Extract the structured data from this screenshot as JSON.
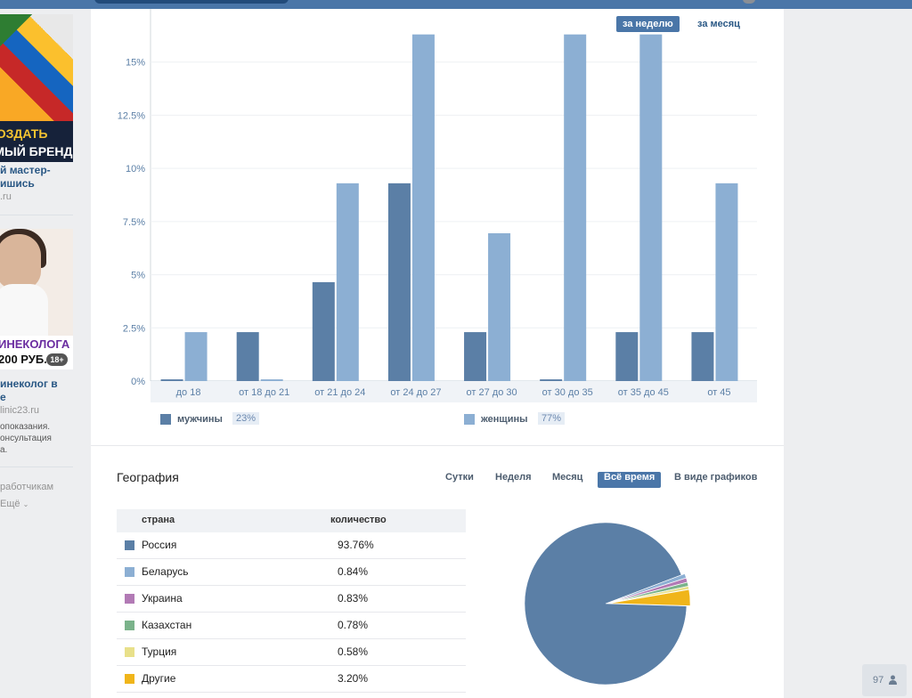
{
  "ads": [
    {
      "banner_line1": "СОЗДАТЬ",
      "banner_line2": "ЕМЫЙ БРЕНД",
      "title_line1": "й мастер-",
      "title_line2": "ишись",
      "domain": ".ru"
    },
    {
      "banner_line1": "ИНЕКОЛОГА",
      "banner_line2": "200 РУБ.",
      "age_badge": "18+",
      "title_line1": "инеколог в",
      "title_line2": "е",
      "domain": "linic23.ru",
      "desc_line1": "опоказания.",
      "desc_line2": "онсультация",
      "desc_line3": "а."
    }
  ],
  "left_links": {
    "developers": "работчикам",
    "more": "Ещё"
  },
  "period_buttons": {
    "week": "за неделю",
    "month": "за месяц"
  },
  "chart_data": {
    "type": "bar",
    "categories": [
      "до 18",
      "от 18 до 21",
      "от 21 до 24",
      "от 24 до 27",
      "от 27 до 30",
      "от 30 до 35",
      "от 35 до 45",
      "от 45"
    ],
    "series": [
      {
        "name": "мужчины",
        "values": [
          0.08,
          2.3,
          4.65,
          9.3,
          2.3,
          0.08,
          2.3,
          2.3
        ],
        "color": "#5b7fa6"
      },
      {
        "name": "женщины",
        "values": [
          2.3,
          0.08,
          9.3,
          16.3,
          6.95,
          16.3,
          16.3,
          9.3
        ],
        "color": "#8cafd3"
      }
    ],
    "yticks": [
      "0%",
      "2.5%",
      "5%",
      "7.5%",
      "10%",
      "12.5%",
      "15%"
    ],
    "ylim": [
      0,
      17.5
    ],
    "grid": true
  },
  "legend": [
    {
      "name": "мужчины",
      "pct": "23%"
    },
    {
      "name": "женщины",
      "pct": "77%"
    }
  ],
  "geography": {
    "title": "География",
    "tabs": [
      "Сутки",
      "Неделя",
      "Месяц",
      "Всё время",
      "В виде графиков"
    ],
    "active_tab": "Всё время",
    "headers": {
      "country": "страна",
      "count": "количество"
    },
    "rows": [
      {
        "country": "Россия",
        "pct": "93.76%",
        "value": 93.76,
        "color": "#5b7fa6"
      },
      {
        "country": "Беларусь",
        "pct": "0.84%",
        "value": 0.84,
        "color": "#8cafd3"
      },
      {
        "country": "Украина",
        "pct": "0.83%",
        "value": 0.83,
        "color": "#b27ab5"
      },
      {
        "country": "Казахстан",
        "pct": "0.78%",
        "value": 0.78,
        "color": "#7bb38b"
      },
      {
        "country": "Турция",
        "pct": "0.58%",
        "value": 0.58,
        "color": "#e8e08a"
      },
      {
        "country": "Другие",
        "pct": "3.20%",
        "value": 3.2,
        "color": "#f0b51a"
      }
    ]
  },
  "counter": "97"
}
